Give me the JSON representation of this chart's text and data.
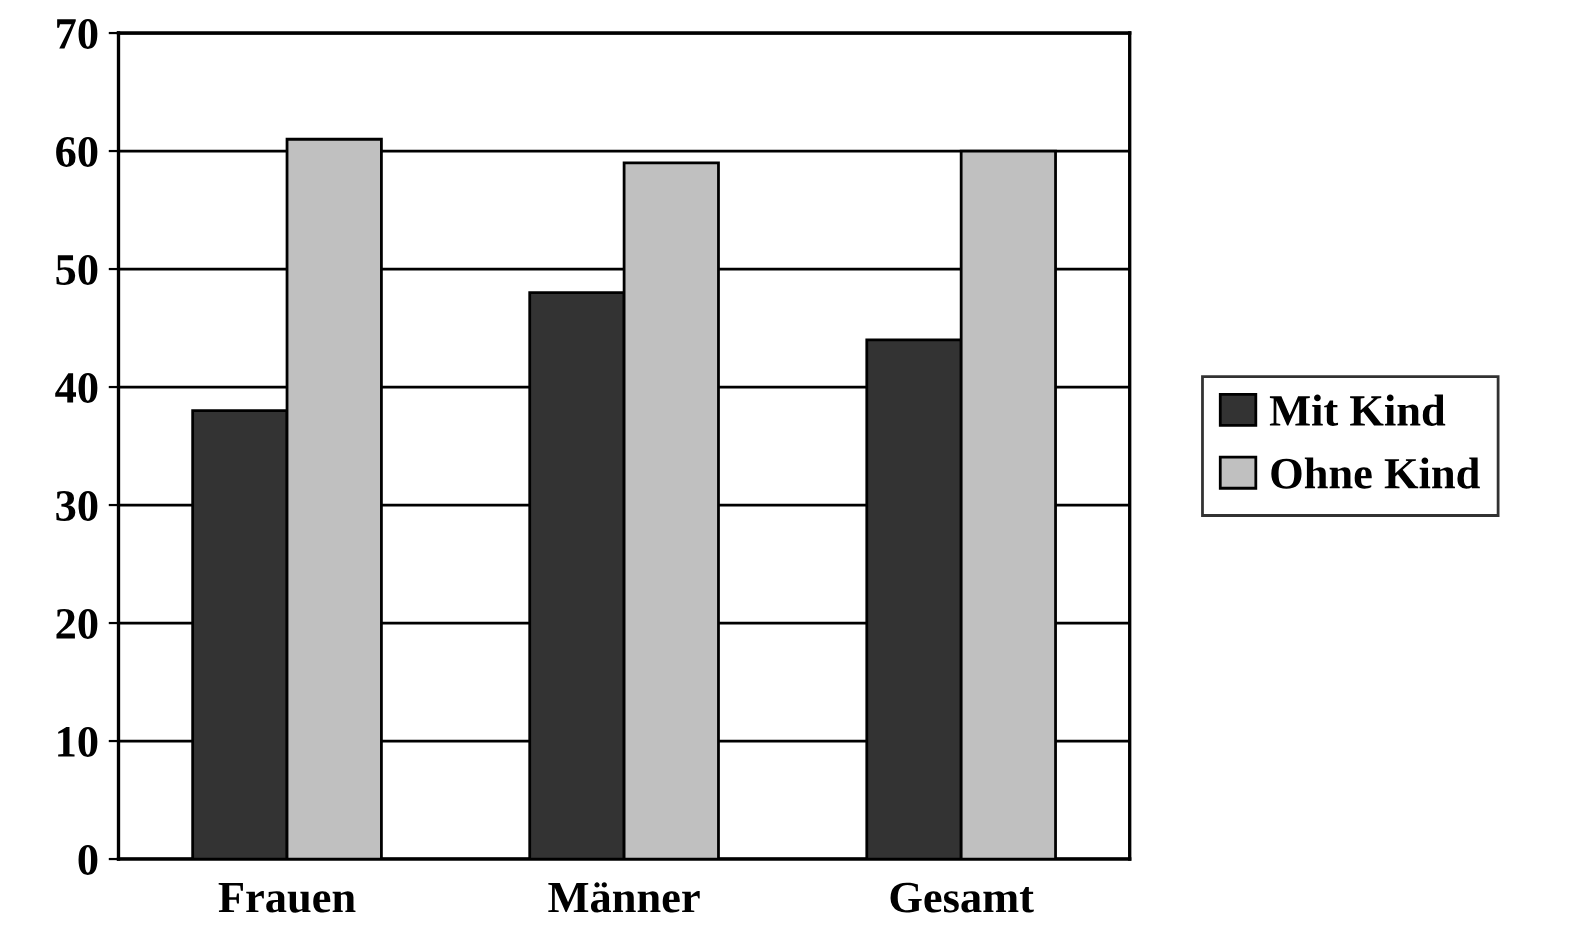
{
  "chart_data": {
    "type": "bar",
    "categories": [
      "Frauen",
      "Männer",
      "Gesamt"
    ],
    "series": [
      {
        "name": "Mit Kind",
        "color": "#333333",
        "values": [
          38,
          48,
          44
        ]
      },
      {
        "name": "Ohne Kind",
        "color": "#c0c0c0",
        "values": [
          61,
          59,
          60
        ]
      }
    ],
    "ylim": [
      0,
      70
    ],
    "yticks": [
      0,
      10,
      20,
      30,
      40,
      50,
      60,
      70
    ],
    "grid": "y",
    "legend": "right"
  }
}
